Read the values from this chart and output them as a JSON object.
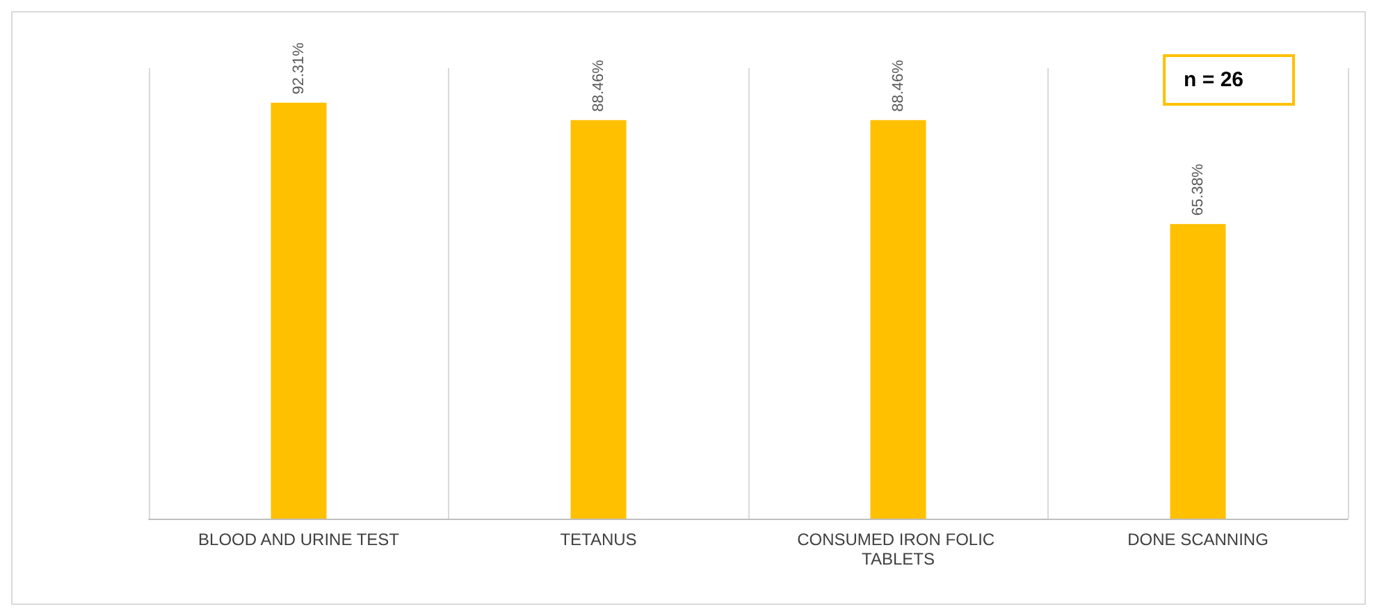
{
  "chart_data": {
    "type": "bar",
    "categories": [
      "BLOOD AND URINE TEST",
      "TETANUS",
      "CONSUMED IRON FOLIC TABLETS",
      "DONE SCANNING"
    ],
    "values": [
      92.31,
      88.46,
      88.46,
      65.38
    ],
    "value_labels": [
      "92.31%",
      "88.46%",
      "88.46%",
      "65.38%"
    ],
    "color": "#ffc000",
    "grid": "x",
    "annotations": [
      "n = 26"
    ]
  }
}
